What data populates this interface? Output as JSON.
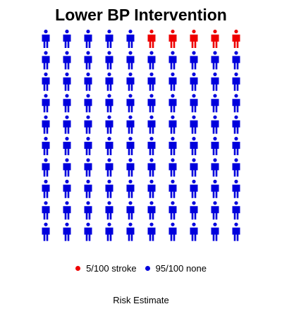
{
  "chart_data": {
    "type": "pictogram",
    "title": "Lower BP Intervention",
    "xlabel": "Risk Estimate",
    "total": 100,
    "rows": 10,
    "cols": 10,
    "fill_order": "top-row-right-to-left",
    "series": [
      {
        "name": "stroke",
        "label": "5/100 stroke",
        "count": 5,
        "color": "#ee0000"
      },
      {
        "name": "none",
        "label": "95/100 none",
        "count": 95,
        "color": "#0000dd"
      }
    ],
    "legend_position": "bottom"
  }
}
